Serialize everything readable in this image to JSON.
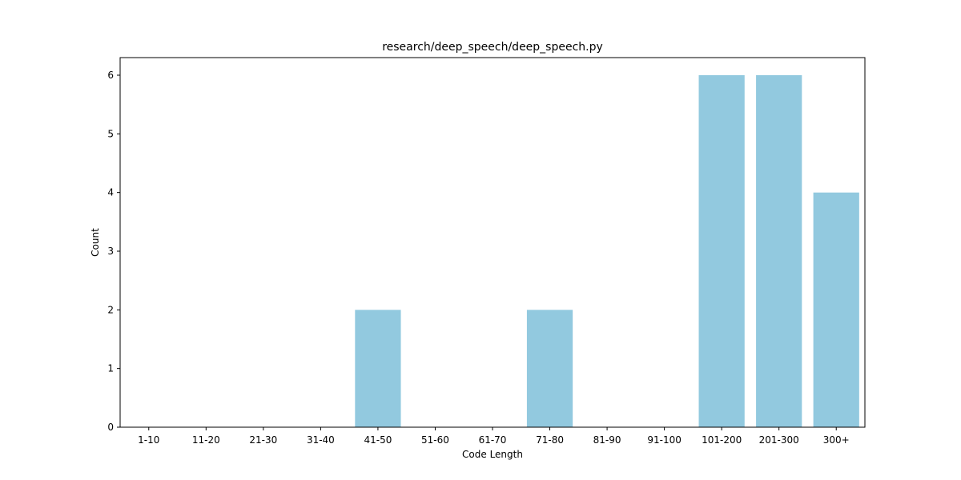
{
  "chart_data": {
    "type": "bar",
    "title": "research/deep_speech/deep_speech.py",
    "xlabel": "Code Length",
    "ylabel": "Count",
    "categories": [
      "1-10",
      "11-20",
      "21-30",
      "31-40",
      "41-50",
      "51-60",
      "61-70",
      "71-80",
      "81-90",
      "91-100",
      "101-200",
      "201-300",
      "300+"
    ],
    "values": [
      0,
      0,
      0,
      0,
      2,
      0,
      0,
      2,
      0,
      0,
      6,
      6,
      4
    ],
    "ylim": [
      0,
      6.3
    ],
    "yticks": [
      0,
      1,
      2,
      3,
      4,
      5,
      6
    ],
    "grid": false,
    "bar_color": "#92c9df"
  }
}
